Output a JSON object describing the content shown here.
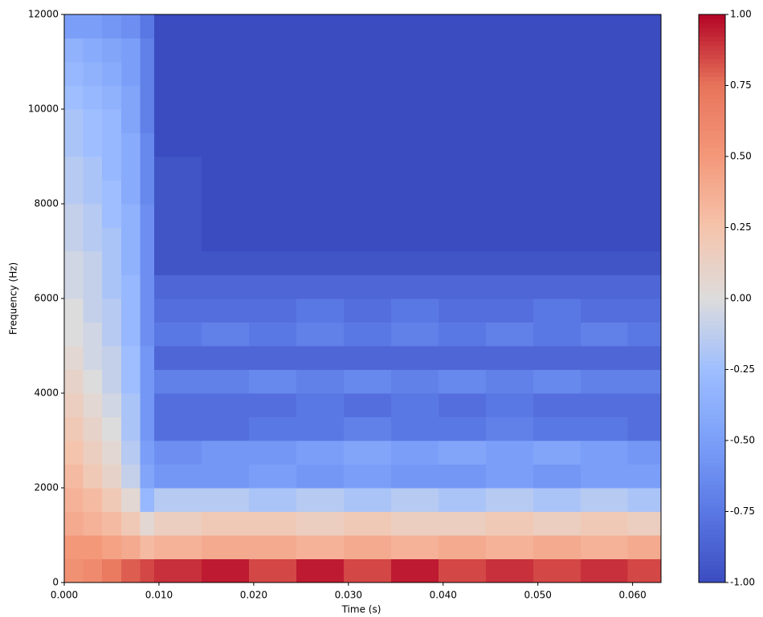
{
  "chart_data": {
    "type": "heatmap",
    "xlabel": "Time (s)",
    "ylabel": "Frequency (Hz)",
    "colormap": "coolwarm",
    "x_edges": [
      0,
      0.002,
      0.004,
      0.006,
      0.008,
      0.0095,
      0.0145,
      0.0195,
      0.0245,
      0.0295,
      0.0345,
      0.0395,
      0.0445,
      0.0495,
      0.0545,
      0.0595,
      0.063
    ],
    "y_edges": [
      0,
      500,
      1000,
      1500,
      2000,
      2500,
      3000,
      3500,
      4000,
      4500,
      5000,
      5500,
      6000,
      6500,
      7000,
      7500,
      8000,
      8500,
      9000,
      9500,
      10000,
      10500,
      11000,
      11500,
      12000
    ],
    "values": [
      [
        0.55,
        0.6,
        0.7,
        0.8,
        0.85,
        0.9,
        0.95,
        0.85,
        0.95,
        0.85,
        0.95,
        0.85,
        0.9,
        0.85,
        0.9,
        0.85
      ],
      [
        0.5,
        0.5,
        0.45,
        0.4,
        0.3,
        0.35,
        0.4,
        0.4,
        0.35,
        0.4,
        0.35,
        0.4,
        0.35,
        0.4,
        0.35,
        0.4
      ],
      [
        0.4,
        0.35,
        0.3,
        0.2,
        0.05,
        0.15,
        0.2,
        0.2,
        0.15,
        0.2,
        0.15,
        0.15,
        0.2,
        0.15,
        0.2,
        0.15
      ],
      [
        0.35,
        0.3,
        0.2,
        0.05,
        -0.3,
        -0.15,
        -0.15,
        -0.2,
        -0.15,
        -0.2,
        -0.15,
        -0.2,
        -0.15,
        -0.2,
        -0.15,
        -0.2
      ],
      [
        0.3,
        0.2,
        0.1,
        -0.1,
        -0.45,
        -0.55,
        -0.55,
        -0.5,
        -0.55,
        -0.5,
        -0.55,
        -0.55,
        -0.5,
        -0.55,
        -0.5,
        -0.5
      ],
      [
        0.25,
        0.15,
        0.05,
        -0.15,
        -0.5,
        -0.6,
        -0.55,
        -0.55,
        -0.5,
        -0.45,
        -0.5,
        -0.45,
        -0.5,
        -0.45,
        -0.5,
        -0.55
      ],
      [
        0.2,
        0.1,
        0.0,
        -0.2,
        -0.55,
        -0.8,
        -0.8,
        -0.75,
        -0.75,
        -0.7,
        -0.75,
        -0.75,
        -0.7,
        -0.75,
        -0.75,
        -0.8
      ],
      [
        0.15,
        0.05,
        -0.05,
        -0.2,
        -0.55,
        -0.8,
        -0.8,
        -0.8,
        -0.75,
        -0.8,
        -0.75,
        -0.8,
        -0.75,
        -0.8,
        -0.8,
        -0.8
      ],
      [
        0.1,
        0.0,
        -0.1,
        -0.25,
        -0.55,
        -0.7,
        -0.7,
        -0.65,
        -0.7,
        -0.65,
        -0.7,
        -0.65,
        -0.7,
        -0.65,
        -0.7,
        -0.7
      ],
      [
        0.05,
        -0.05,
        -0.1,
        -0.25,
        -0.55,
        -0.85,
        -0.85,
        -0.85,
        -0.85,
        -0.85,
        -0.85,
        -0.85,
        -0.85,
        -0.85,
        -0.85,
        -0.85
      ],
      [
        0.0,
        -0.05,
        -0.15,
        -0.3,
        -0.6,
        -0.75,
        -0.7,
        -0.75,
        -0.7,
        -0.75,
        -0.7,
        -0.75,
        -0.7,
        -0.75,
        -0.7,
        -0.75
      ],
      [
        0.0,
        -0.1,
        -0.15,
        -0.3,
        -0.6,
        -0.8,
        -0.8,
        -0.8,
        -0.75,
        -0.8,
        -0.75,
        -0.8,
        -0.8,
        -0.75,
        -0.8,
        -0.8
      ],
      [
        -0.05,
        -0.1,
        -0.2,
        -0.3,
        -0.6,
        -0.85,
        -0.85,
        -0.85,
        -0.85,
        -0.85,
        -0.85,
        -0.85,
        -0.85,
        -0.85,
        -0.85,
        -0.85
      ],
      [
        -0.05,
        -0.1,
        -0.2,
        -0.35,
        -0.6,
        -0.95,
        -0.95,
        -0.95,
        -0.95,
        -0.95,
        -0.95,
        -0.95,
        -0.95,
        -0.95,
        -0.95,
        -0.95
      ],
      [
        -0.1,
        -0.15,
        -0.2,
        -0.35,
        -0.6,
        -0.95,
        -1,
        -1,
        -1,
        -1,
        -1,
        -1,
        -1,
        -1,
        -1,
        -1
      ],
      [
        -0.1,
        -0.15,
        -0.25,
        -0.35,
        -0.6,
        -0.95,
        -1,
        -1,
        -1,
        -1,
        -1,
        -1,
        -1,
        -1,
        -1,
        -1
      ],
      [
        -0.15,
        -0.2,
        -0.25,
        -0.4,
        -0.65,
        -0.95,
        -1,
        -1,
        -1,
        -1,
        -1,
        -1,
        -1,
        -1,
        -1,
        -1
      ],
      [
        -0.15,
        -0.2,
        -0.3,
        -0.4,
        -0.65,
        -0.95,
        -1,
        -1,
        -1,
        -1,
        -1,
        -1,
        -1,
        -1,
        -1,
        -1
      ],
      [
        -0.2,
        -0.25,
        -0.3,
        -0.4,
        -0.65,
        -1,
        -1,
        -1,
        -1,
        -1,
        -1,
        -1,
        -1,
        -1,
        -1,
        -1
      ],
      [
        -0.2,
        -0.25,
        -0.3,
        -0.45,
        -0.7,
        -1,
        -1,
        -1,
        -1,
        -1,
        -1,
        -1,
        -1,
        -1,
        -1,
        -1
      ],
      [
        -0.25,
        -0.3,
        -0.35,
        -0.45,
        -0.7,
        -1,
        -1,
        -1,
        -1,
        -1,
        -1,
        -1,
        -1,
        -1,
        -1,
        -1
      ],
      [
        -0.3,
        -0.35,
        -0.4,
        -0.5,
        -0.7,
        -1,
        -1,
        -1,
        -1,
        -1,
        -1,
        -1,
        -1,
        -1,
        -1,
        -1
      ],
      [
        -0.35,
        -0.4,
        -0.45,
        -0.5,
        -0.7,
        -1,
        -1,
        -1,
        -1,
        -1,
        -1,
        -1,
        -1,
        -1,
        -1,
        -1
      ],
      [
        -0.5,
        -0.5,
        -0.55,
        -0.6,
        -0.75,
        -1,
        -1,
        -1,
        -1,
        -1,
        -1,
        -1,
        -1,
        -1,
        -1,
        -1
      ]
    ],
    "xlim": [
      0,
      0.063
    ],
    "ylim": [
      0,
      12000
    ],
    "xticks": [
      {
        "value": 0,
        "label": "0.000"
      },
      {
        "value": 0.01,
        "label": "0.010"
      },
      {
        "value": 0.02,
        "label": "0.020"
      },
      {
        "value": 0.03,
        "label": "0.030"
      },
      {
        "value": 0.04,
        "label": "0.040"
      },
      {
        "value": 0.05,
        "label": "0.050"
      },
      {
        "value": 0.06,
        "label": "0.060"
      }
    ],
    "yticks": [
      0,
      2000,
      4000,
      6000,
      8000,
      10000,
      12000
    ],
    "clim": [
      -1,
      1
    ],
    "cticks": [
      {
        "value": -1,
        "label": "-1.00"
      },
      {
        "value": -0.75,
        "label": "-0.75"
      },
      {
        "value": -0.5,
        "label": "-0.50"
      },
      {
        "value": -0.25,
        "label": "-0.25"
      },
      {
        "value": 0,
        "label": "0.00"
      },
      {
        "value": 0.25,
        "label": "0.25"
      },
      {
        "value": 0.5,
        "label": "0.50"
      },
      {
        "value": 0.75,
        "label": "0.75"
      },
      {
        "value": 1,
        "label": "1.00"
      }
    ]
  }
}
